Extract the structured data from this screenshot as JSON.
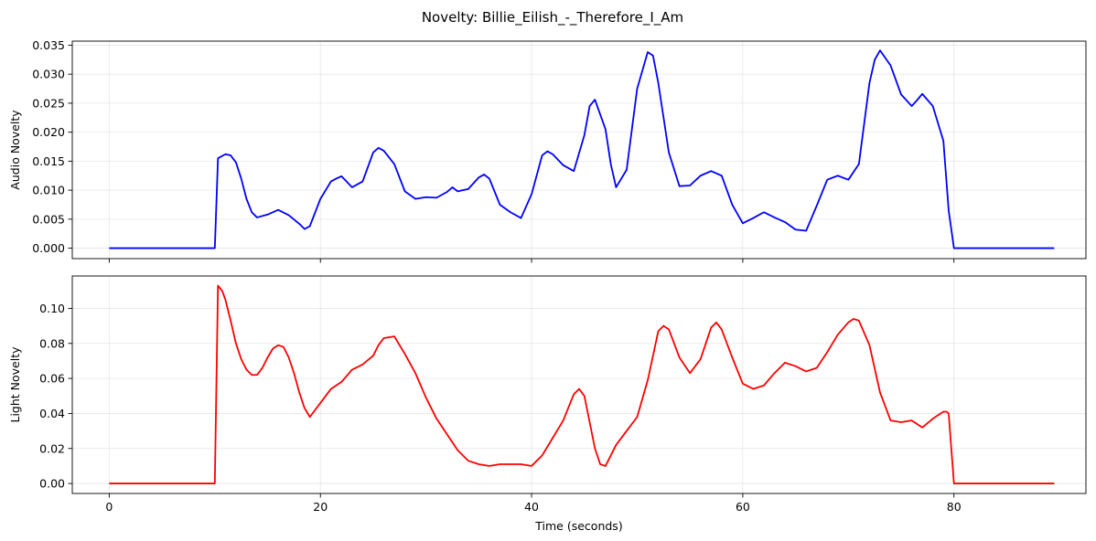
{
  "figure": {
    "title": "Novelty: Billie_Eilish_-_Therefore_I_Am"
  },
  "chart_data": [
    {
      "type": "line",
      "ylabel": "Audio Novelty",
      "xlabel": "",
      "xlim": [
        -3.5,
        92.5
      ],
      "ylim": [
        -0.0018,
        0.0357
      ],
      "xticks": [
        0,
        20,
        40,
        60,
        80
      ],
      "show_xtick_labels": false,
      "yticks": [
        0.0,
        0.005,
        0.01,
        0.015,
        0.02,
        0.025,
        0.03,
        0.035
      ],
      "ytick_labels": [
        "0.000",
        "0.005",
        "0.010",
        "0.015",
        "0.020",
        "0.025",
        "0.030",
        "0.035"
      ],
      "grid": true,
      "series": [
        {
          "color": "#0000ff",
          "x": [
            0,
            10,
            10.3,
            11,
            11.5,
            12,
            12.5,
            13,
            13.5,
            14,
            15,
            16,
            17,
            18,
            18.5,
            19,
            20,
            21,
            21.5,
            22,
            23,
            24,
            25,
            25.5,
            26,
            27,
            28,
            29,
            30,
            31,
            32,
            32.5,
            33,
            34,
            35,
            35.5,
            36,
            37,
            38,
            39,
            40,
            41,
            41.5,
            42,
            43,
            44,
            45,
            45.5,
            46,
            47,
            47.5,
            48,
            49,
            50,
            51,
            51.5,
            52,
            53,
            54,
            55,
            56,
            57,
            58,
            59,
            60,
            61,
            62,
            63,
            64,
            65,
            66,
            67,
            68,
            69,
            70,
            71,
            72,
            72.5,
            73,
            74,
            75,
            76,
            76.5,
            77,
            78,
            79,
            79.5,
            80,
            85,
            89.5
          ],
          "y": [
            0,
            0,
            0.0155,
            0.0162,
            0.016,
            0.0148,
            0.012,
            0.0085,
            0.0062,
            0.0053,
            0.0058,
            0.0066,
            0.0057,
            0.0042,
            0.0033,
            0.0038,
            0.0085,
            0.0115,
            0.012,
            0.0124,
            0.0105,
            0.0115,
            0.0165,
            0.0173,
            0.0168,
            0.0145,
            0.0098,
            0.0085,
            0.0088,
            0.0087,
            0.0097,
            0.0105,
            0.0098,
            0.0102,
            0.0122,
            0.0127,
            0.012,
            0.0075,
            0.0062,
            0.0052,
            0.0093,
            0.016,
            0.0167,
            0.0162,
            0.0143,
            0.0133,
            0.0195,
            0.0245,
            0.0256,
            0.0205,
            0.0145,
            0.0105,
            0.0135,
            0.0275,
            0.0338,
            0.0332,
            0.0285,
            0.0165,
            0.0107,
            0.0108,
            0.0125,
            0.0133,
            0.0125,
            0.0075,
            0.0043,
            0.0052,
            0.0062,
            0.0053,
            0.0045,
            0.0032,
            0.003,
            0.0073,
            0.0118,
            0.0125,
            0.0118,
            0.0145,
            0.0285,
            0.0325,
            0.0341,
            0.0315,
            0.0265,
            0.0245,
            0.0255,
            0.0266,
            0.0245,
            0.0185,
            0.0065,
            0,
            0,
            0
          ]
        }
      ]
    },
    {
      "type": "line",
      "ylabel": "Light Novelty",
      "xlabel": "Time (seconds)",
      "xlim": [
        -3.5,
        92.5
      ],
      "ylim": [
        -0.0057,
        0.1185
      ],
      "xticks": [
        0,
        20,
        40,
        60,
        80
      ],
      "xtick_labels": [
        "0",
        "20",
        "40",
        "60",
        "80"
      ],
      "show_xtick_labels": true,
      "yticks": [
        0.0,
        0.02,
        0.04,
        0.06,
        0.08,
        0.1
      ],
      "ytick_labels": [
        "0.00",
        "0.02",
        "0.04",
        "0.06",
        "0.08",
        "0.10"
      ],
      "grid": true,
      "series": [
        {
          "color": "#ff0000",
          "x": [
            0,
            10,
            10.3,
            10.7,
            11,
            11.5,
            12,
            12.5,
            13,
            13.5,
            14,
            14.5,
            15,
            15.5,
            16,
            16.5,
            17,
            17.5,
            18,
            18.5,
            19,
            20,
            21,
            22,
            23,
            24,
            25,
            25.5,
            26,
            27,
            28,
            29,
            30,
            31,
            32,
            33,
            34,
            35,
            36,
            37,
            38,
            39,
            40,
            41,
            42,
            43,
            44,
            44.5,
            45,
            45.5,
            46,
            46.5,
            47,
            48,
            49,
            50,
            51,
            52,
            52.5,
            53,
            54,
            55,
            56,
            57,
            57.5,
            58,
            59,
            60,
            61,
            62,
            63,
            64,
            65,
            66,
            67,
            68,
            69,
            70,
            70.5,
            71,
            72,
            73,
            74,
            75,
            76,
            77,
            78,
            79,
            79.3,
            79.5,
            80,
            85,
            89.5
          ],
          "y": [
            0,
            0,
            0.113,
            0.11,
            0.105,
            0.093,
            0.08,
            0.071,
            0.065,
            0.062,
            0.062,
            0.066,
            0.072,
            0.077,
            0.079,
            0.078,
            0.072,
            0.063,
            0.052,
            0.043,
            0.038,
            0.046,
            0.054,
            0.058,
            0.065,
            0.068,
            0.073,
            0.079,
            0.083,
            0.084,
            0.074,
            0.063,
            0.049,
            0.037,
            0.028,
            0.019,
            0.013,
            0.011,
            0.01,
            0.011,
            0.011,
            0.011,
            0.01,
            0.016,
            0.026,
            0.036,
            0.051,
            0.054,
            0.05,
            0.035,
            0.02,
            0.011,
            0.01,
            0.022,
            0.03,
            0.038,
            0.059,
            0.087,
            0.09,
            0.088,
            0.072,
            0.063,
            0.071,
            0.089,
            0.092,
            0.088,
            0.072,
            0.057,
            0.054,
            0.056,
            0.063,
            0.069,
            0.067,
            0.064,
            0.066,
            0.075,
            0.085,
            0.092,
            0.094,
            0.093,
            0.079,
            0.052,
            0.036,
            0.035,
            0.036,
            0.032,
            0.037,
            0.041,
            0.041,
            0.04,
            0,
            0,
            0
          ]
        }
      ]
    }
  ]
}
